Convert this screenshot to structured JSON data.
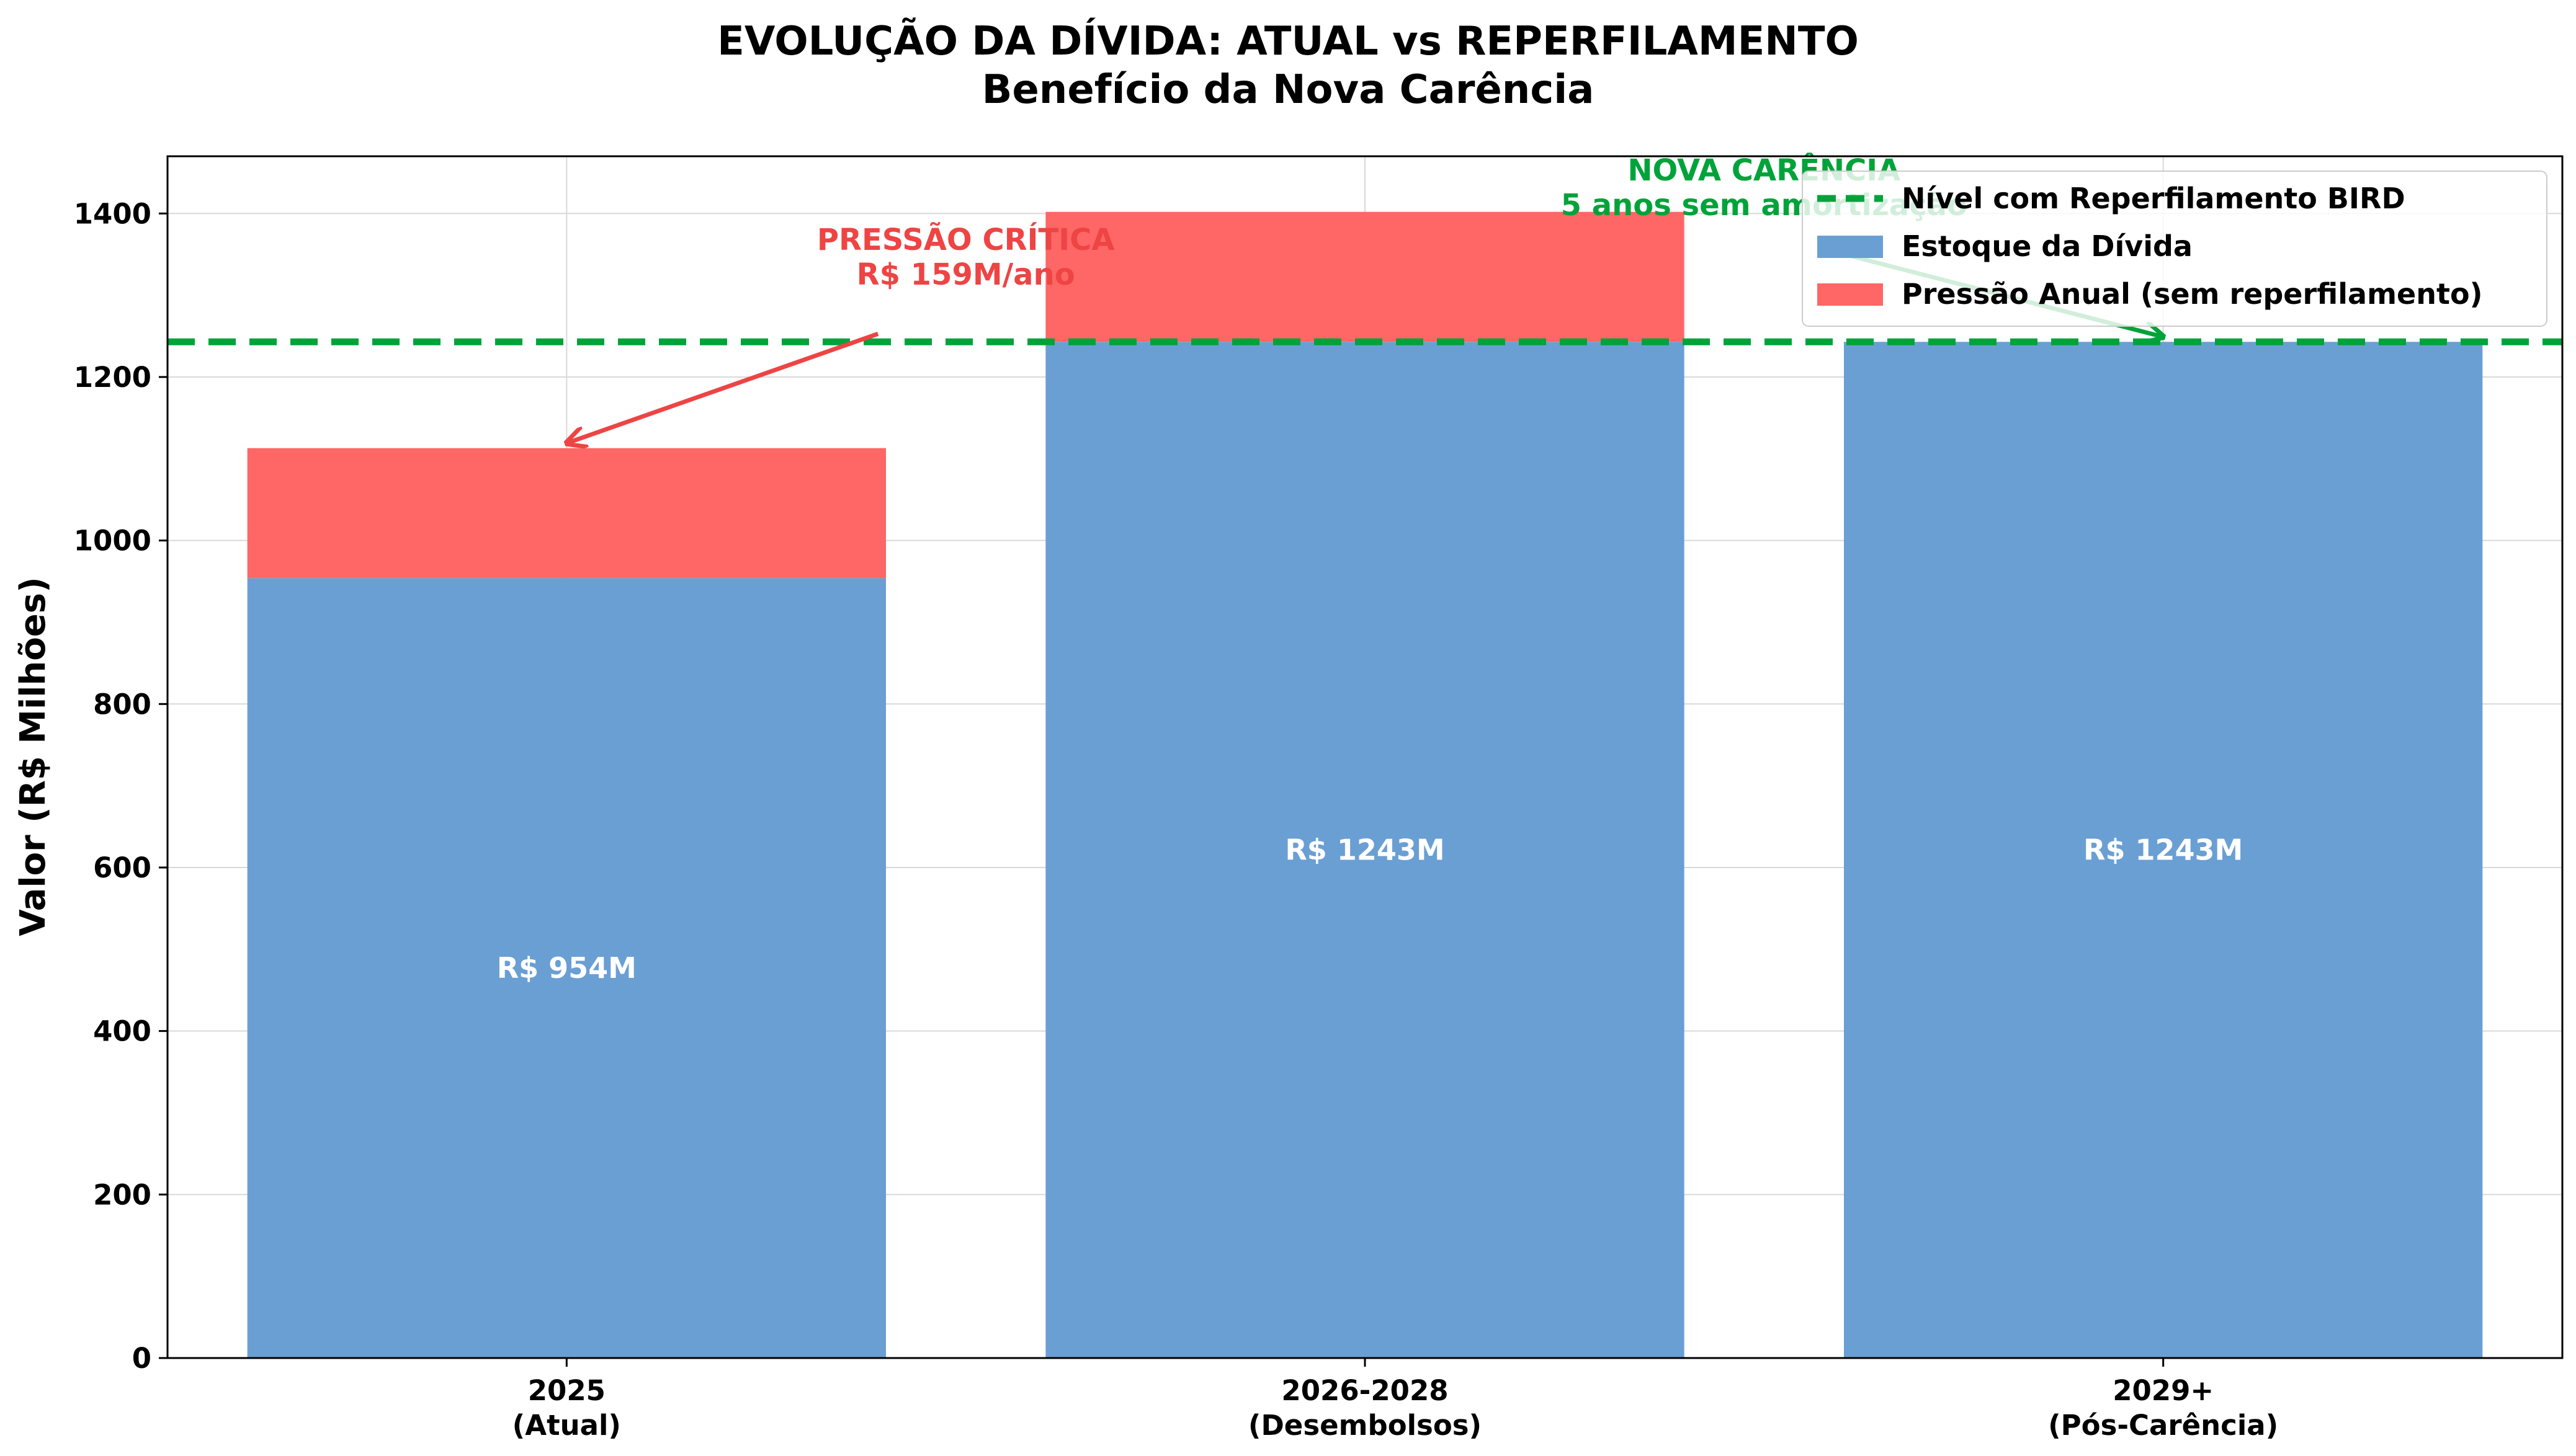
{
  "chart_data": {
    "type": "bar",
    "stacked": true,
    "title": "EVOLUÇÃO DA DÍVIDA: ATUAL vs REPERFILAMENTO",
    "subtitle": "Benefício da Nova Carência",
    "xlabel": "",
    "ylabel": "Valor (R$ Milhões)",
    "ylim": [
      0,
      1470
    ],
    "yticks": [
      0,
      200,
      400,
      600,
      800,
      1000,
      1200,
      1400
    ],
    "grid": true,
    "legend_position": "top-right",
    "categories": [
      "2025",
      "2026-2028",
      "2029+"
    ],
    "category_sublabels": [
      "(Atual)",
      "(Desembolsos)",
      "(Pós-Carência)"
    ],
    "series": [
      {
        "name": "Estoque da Dívida",
        "values": [
          954,
          1243,
          1243
        ],
        "color": "#6a9fd4",
        "data_labels": [
          "R$ 954M",
          "R$ 1243M",
          "R$ 1243M"
        ]
      },
      {
        "name": "Pressão Anual (sem reperfilamento)",
        "values": [
          159,
          159,
          0
        ],
        "color": "#ff6666"
      }
    ],
    "reference_line": {
      "name": "Nível com Reperfilamento BIRD",
      "value": 1243,
      "color": "#00a33a",
      "style": "dashed"
    },
    "annotations": [
      {
        "lines": [
          "PRESSÃO CRÍTICA",
          "R$ 159M/ano"
        ],
        "color": "#ee4444",
        "text_x": 0.5,
        "text_y": 1310,
        "arrow_to_x": 0,
        "arrow_to_y": 1113
      },
      {
        "lines": [
          "NOVA CARÊNCIA",
          "5 anos sem amortização"
        ],
        "color": "#00a33a",
        "text_x": 1.5,
        "text_y": 1395,
        "arrow_to_x": 2,
        "arrow_to_y": 1243
      }
    ]
  }
}
